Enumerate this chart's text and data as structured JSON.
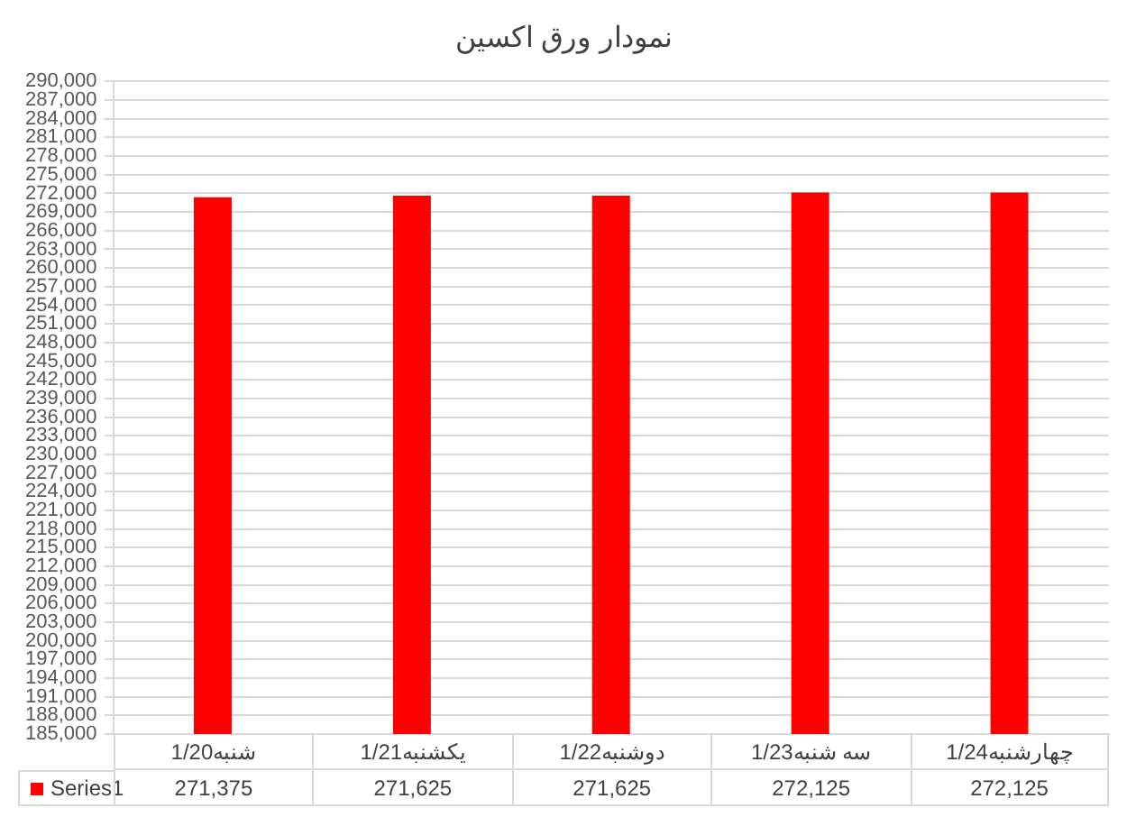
{
  "chart_data": {
    "type": "bar",
    "title": "نمودار ورق اکسین",
    "categories": [
      "1/20شنبه",
      "1/21یکشنبه",
      "1/22دوشنبه",
      "1/23سه شنبه",
      "1/24چهارشنبه"
    ],
    "series": [
      {
        "name": "Series1",
        "color": "#ff0000",
        "values": [
          271375,
          271625,
          271625,
          272125,
          272125
        ],
        "value_labels": [
          "271,375",
          "271,625",
          "271,625",
          "272,125",
          "272,125"
        ]
      }
    ],
    "ylim": [
      185000,
      290000
    ],
    "yticks": [
      {
        "value": 185000,
        "label": "185,000"
      },
      {
        "value": 188000,
        "label": "188,000"
      },
      {
        "value": 191000,
        "label": "191,000"
      },
      {
        "value": 194000,
        "label": "194,000"
      },
      {
        "value": 197000,
        "label": "197,000"
      },
      {
        "value": 200000,
        "label": "200,000"
      },
      {
        "value": 203000,
        "label": "203,000"
      },
      {
        "value": 206000,
        "label": "206,000"
      },
      {
        "value": 209000,
        "label": "209,000"
      },
      {
        "value": 212000,
        "label": "212,000"
      },
      {
        "value": 215000,
        "label": "215,000"
      },
      {
        "value": 218000,
        "label": "218,000"
      },
      {
        "value": 221000,
        "label": "221,000"
      },
      {
        "value": 224000,
        "label": "224,000"
      },
      {
        "value": 227000,
        "label": "227,000"
      },
      {
        "value": 230000,
        "label": "230,000"
      },
      {
        "value": 233000,
        "label": "233,000"
      },
      {
        "value": 236000,
        "label": "236,000"
      },
      {
        "value": 239000,
        "label": "239,000"
      },
      {
        "value": 242000,
        "label": "242,000"
      },
      {
        "value": 245000,
        "label": "245,000"
      },
      {
        "value": 248000,
        "label": "248,000"
      },
      {
        "value": 251000,
        "label": "251,000"
      },
      {
        "value": 254000,
        "label": "254,000"
      },
      {
        "value": 257000,
        "label": "257,000"
      },
      {
        "value": 260000,
        "label": "260,000"
      },
      {
        "value": 263000,
        "label": "263,000"
      },
      {
        "value": 266000,
        "label": "266,000"
      },
      {
        "value": 269000,
        "label": "269,000"
      },
      {
        "value": 272000,
        "label": "272,000"
      },
      {
        "value": 275000,
        "label": "275,000"
      },
      {
        "value": 278000,
        "label": "278,000"
      },
      {
        "value": 281000,
        "label": "281,000"
      },
      {
        "value": 284000,
        "label": "284,000"
      },
      {
        "value": 287000,
        "label": "287,000"
      },
      {
        "value": 290000,
        "label": "290,000"
      }
    ],
    "grid": "y",
    "legend": "bottom"
  }
}
